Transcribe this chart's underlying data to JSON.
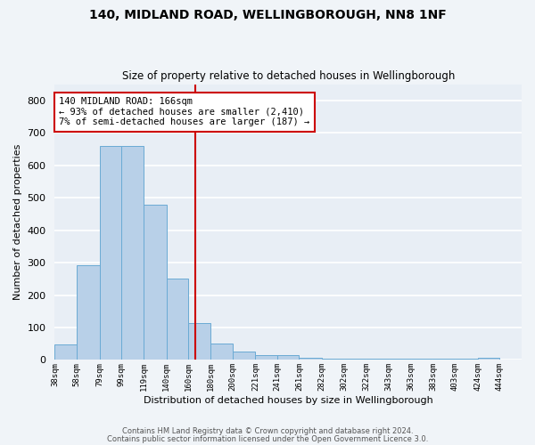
{
  "title1": "140, MIDLAND ROAD, WELLINGBOROUGH, NN8 1NF",
  "title2": "Size of property relative to detached houses in Wellingborough",
  "xlabel": "Distribution of detached houses by size in Wellingborough",
  "ylabel": "Number of detached properties",
  "bin_labels": [
    "38sqm",
    "58sqm",
    "79sqm",
    "99sqm",
    "119sqm",
    "140sqm",
    "160sqm",
    "180sqm",
    "200sqm",
    "221sqm",
    "241sqm",
    "261sqm",
    "282sqm",
    "302sqm",
    "322sqm",
    "343sqm",
    "363sqm",
    "383sqm",
    "403sqm",
    "424sqm",
    "444sqm"
  ],
  "bar_heights": [
    48,
    293,
    660,
    660,
    478,
    251,
    114,
    51,
    27,
    15,
    14,
    7,
    5,
    5,
    5,
    5,
    5,
    5,
    3,
    8,
    0
  ],
  "bar_color": "#b8d0e8",
  "bar_edge_color": "#6aaad4",
  "background_color": "#e8eef5",
  "grid_color": "#ffffff",
  "vline_x": 166,
  "vline_color": "#cc0000",
  "annotation_box_color": "#cc0000",
  "annotation_lines": [
    "140 MIDLAND ROAD: 166sqm",
    "← 93% of detached houses are smaller (2,410)",
    "7% of semi-detached houses are larger (187) →"
  ],
  "annotation_fontsize": 7.5,
  "ylim": [
    0,
    850
  ],
  "yticks": [
    0,
    100,
    200,
    300,
    400,
    500,
    600,
    700,
    800
  ],
  "footnote1": "Contains HM Land Registry data © Crown copyright and database right 2024.",
  "footnote2": "Contains public sector information licensed under the Open Government Licence 3.0.",
  "bin_starts": [
    38,
    58,
    79,
    99,
    119,
    140,
    160,
    180,
    200,
    221,
    241,
    261,
    282,
    302,
    322,
    343,
    363,
    383,
    403,
    424,
    444
  ]
}
